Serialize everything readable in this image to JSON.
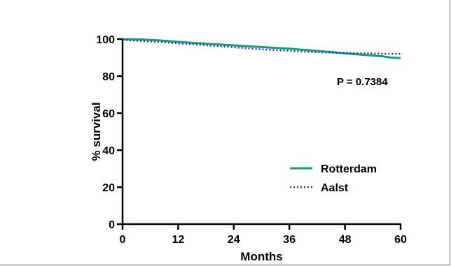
{
  "chart_data": {
    "type": "line",
    "title": "",
    "xlabel": "Months",
    "ylabel": "% survival",
    "xlim": [
      0,
      60
    ],
    "ylim": [
      0,
      100
    ],
    "x_ticks": [
      0,
      12,
      24,
      36,
      48,
      60
    ],
    "y_ticks": [
      0,
      20,
      40,
      60,
      80,
      100
    ],
    "annotation": "P  = 0.7384",
    "legend_position": "bottom-right",
    "grid": false,
    "series": [
      {
        "name": "Rotterdam",
        "color": "#1a9e6e",
        "style": "solid",
        "x": [
          0,
          4,
          8,
          12,
          16,
          20,
          24,
          28,
          32,
          36,
          40,
          44,
          48,
          52,
          56,
          58,
          60
        ],
        "y": [
          100,
          99.8,
          99.3,
          98.5,
          97.8,
          97.2,
          96.6,
          96.0,
          95.4,
          94.8,
          94.0,
          93.2,
          92.3,
          91.5,
          90.7,
          90.0,
          89.7
        ]
      },
      {
        "name": "Aalst",
        "color": "#1f2be8",
        "style": "dotted",
        "x": [
          0,
          4,
          8,
          12,
          16,
          20,
          24,
          28,
          32,
          36,
          40,
          44,
          48,
          52,
          56,
          60
        ],
        "y": [
          99.5,
          99.0,
          98.4,
          97.7,
          97.0,
          96.3,
          95.6,
          94.8,
          94.2,
          93.6,
          93.1,
          92.7,
          92.5,
          92.3,
          92.1,
          92.0
        ]
      }
    ]
  }
}
